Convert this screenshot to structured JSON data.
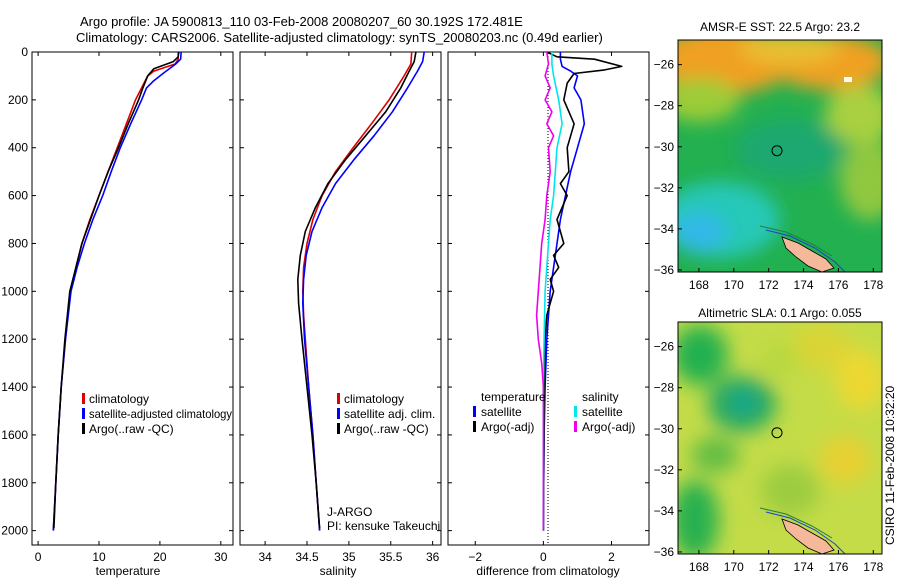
{
  "header": {
    "line1": "Argo profile: JA 5900813_110 03-Feb-2008 20080207_60 30.192S 172.481E",
    "line2": "Climatology: CARS2006. Satellite-adjusted climatology: synTS_20080203.nc (0.49d earlier)"
  },
  "side_label": "CSIRO 11-Feb-2008 10:32:20",
  "pi_info": {
    "line1": "J-ARGO",
    "line2": "PI: kensuke Takeuchi"
  },
  "colors": {
    "climatology": "#dd0000",
    "satellite": "#0000ff",
    "argo": "#000000",
    "sal_satellite": "#00e5ee",
    "sal_argo": "#ee00ee"
  },
  "chart_data": [
    {
      "type": "line",
      "xlabel": "temperature",
      "ylabel": "",
      "xlim": [
        -1,
        32
      ],
      "ylim": [
        2060,
        0
      ],
      "xticks": [
        0,
        10,
        20,
        30
      ],
      "yticks": [
        0,
        200,
        400,
        600,
        800,
        1000,
        1200,
        1400,
        1600,
        1800,
        2000
      ],
      "legend": [
        "climatology",
        "satellite-adjusted climatology",
        "Argo(..raw -QC)"
      ],
      "series": [
        {
          "name": "climatology",
          "color": "#dd0000",
          "points": [
            [
              23,
              0
            ],
            [
              23,
              30
            ],
            [
              22.5,
              50
            ],
            [
              19,
              80
            ],
            [
              18,
              100
            ],
            [
              17,
              150
            ],
            [
              16,
              200
            ],
            [
              14.5,
              300
            ],
            [
              13,
              400
            ],
            [
              11.5,
              500
            ],
            [
              10,
              600
            ],
            [
              8.5,
              700
            ],
            [
              7.2,
              800
            ],
            [
              6.2,
              900
            ],
            [
              5.3,
              1000
            ],
            [
              4.5,
              1200
            ],
            [
              3.8,
              1400
            ],
            [
              3.3,
              1600
            ],
            [
              2.9,
              1800
            ],
            [
              2.5,
              2000
            ]
          ]
        },
        {
          "name": "satellite-adjusted climatology",
          "color": "#0000ff",
          "points": [
            [
              23.5,
              0
            ],
            [
              23.4,
              30
            ],
            [
              22.6,
              50
            ],
            [
              20.5,
              90
            ],
            [
              19,
              120
            ],
            [
              17.8,
              150
            ],
            [
              17,
              200
            ],
            [
              15.2,
              300
            ],
            [
              13.5,
              400
            ],
            [
              12,
              500
            ],
            [
              10.6,
              600
            ],
            [
              9,
              700
            ],
            [
              7.6,
              800
            ],
            [
              6.4,
              900
            ],
            [
              5.4,
              1000
            ],
            [
              4.5,
              1200
            ],
            [
              3.8,
              1400
            ],
            [
              3.3,
              1600
            ],
            [
              2.9,
              1800
            ],
            [
              2.5,
              2000
            ]
          ]
        },
        {
          "name": "Argo(..raw -QC)",
          "color": "#000000",
          "points": [
            [
              23.1,
              0
            ],
            [
              23,
              20
            ],
            [
              22.2,
              40
            ],
            [
              19,
              70
            ],
            [
              18,
              100
            ],
            [
              17.2,
              150
            ],
            [
              16.5,
              200
            ],
            [
              14.8,
              300
            ],
            [
              13.2,
              400
            ],
            [
              11.5,
              500
            ],
            [
              10,
              600
            ],
            [
              8.6,
              700
            ],
            [
              7.2,
              800
            ],
            [
              6.2,
              900
            ],
            [
              5.2,
              1000
            ],
            [
              4.4,
              1200
            ],
            [
              3.8,
              1400
            ],
            [
              3.3,
              1600
            ],
            [
              2.9,
              1800
            ],
            [
              2.6,
              1990
            ]
          ]
        }
      ]
    },
    {
      "type": "line",
      "xlabel": "salinity",
      "ylabel": "",
      "xlim": [
        33.7,
        36.1
      ],
      "ylim": [
        2060,
        0
      ],
      "xticks": [
        34,
        34.5,
        35,
        35.5,
        36
      ],
      "yticks": [],
      "legend": [
        "climatology",
        "satellite adj. clim.",
        "Argo(..raw -QC)"
      ],
      "series": [
        {
          "name": "climatology",
          "color": "#dd0000",
          "points": [
            [
              35.75,
              0
            ],
            [
              35.74,
              50
            ],
            [
              35.66,
              100
            ],
            [
              35.48,
              200
            ],
            [
              35.27,
              300
            ],
            [
              35.05,
              400
            ],
            [
              34.84,
              500
            ],
            [
              34.68,
              600
            ],
            [
              34.57,
              700
            ],
            [
              34.5,
              800
            ],
            [
              34.46,
              900
            ],
            [
              34.45,
              1000
            ],
            [
              34.46,
              1100
            ],
            [
              34.48,
              1200
            ],
            [
              34.52,
              1400
            ],
            [
              34.57,
              1600
            ],
            [
              34.61,
              1800
            ],
            [
              34.65,
              2000
            ]
          ]
        },
        {
          "name": "satellite adj. clim.",
          "color": "#0000ff",
          "points": [
            [
              35.9,
              0
            ],
            [
              35.88,
              40
            ],
            [
              35.82,
              80
            ],
            [
              35.7,
              150
            ],
            [
              35.52,
              250
            ],
            [
              35.3,
              350
            ],
            [
              35.06,
              450
            ],
            [
              34.84,
              550
            ],
            [
              34.68,
              650
            ],
            [
              34.56,
              750
            ],
            [
              34.49,
              850
            ],
            [
              34.46,
              950
            ],
            [
              34.45,
              1050
            ],
            [
              34.47,
              1200
            ],
            [
              34.52,
              1400
            ],
            [
              34.57,
              1600
            ],
            [
              34.61,
              1800
            ],
            [
              34.65,
              2000
            ]
          ]
        },
        {
          "name": "Argo(..raw -QC)",
          "color": "#000000",
          "points": [
            [
              35.8,
              0
            ],
            [
              35.78,
              40
            ],
            [
              35.72,
              80
            ],
            [
              35.62,
              150
            ],
            [
              35.44,
              250
            ],
            [
              35.2,
              350
            ],
            [
              34.96,
              450
            ],
            [
              34.75,
              550
            ],
            [
              34.6,
              650
            ],
            [
              34.48,
              750
            ],
            [
              34.42,
              850
            ],
            [
              34.39,
              950
            ],
            [
              34.4,
              1050
            ],
            [
              34.44,
              1200
            ],
            [
              34.5,
              1400
            ],
            [
              34.56,
              1600
            ],
            [
              34.61,
              1800
            ],
            [
              34.65,
              1990
            ]
          ]
        }
      ]
    },
    {
      "type": "line",
      "xlabel": "difference from climatology",
      "ylabel": "",
      "xlim": [
        -2.8,
        3.1
      ],
      "ylim": [
        2060,
        0
      ],
      "xticks": [
        -2,
        0,
        2
      ],
      "yticks": [],
      "legend": [
        "temperature",
        "satellite",
        "Argo(-adj)",
        "salinity",
        "satellite",
        "Argo(-adj)"
      ],
      "series": [
        {
          "name": "temperature satellite",
          "color": "#0000ff",
          "points": [
            [
              0.5,
              0
            ],
            [
              0.5,
              30
            ],
            [
              0.55,
              60
            ],
            [
              0.8,
              80
            ],
            [
              1.0,
              100
            ],
            [
              0.9,
              150
            ],
            [
              1.1,
              200
            ],
            [
              1.2,
              300
            ],
            [
              1.0,
              400
            ],
            [
              0.8,
              500
            ],
            [
              0.65,
              600
            ],
            [
              0.5,
              700
            ],
            [
              0.4,
              800
            ],
            [
              0.3,
              900
            ],
            [
              0.2,
              1000
            ],
            [
              0.1,
              1200
            ],
            [
              0.05,
              1400
            ],
            [
              0.02,
              1600
            ],
            [
              0.01,
              1800
            ],
            [
              0,
              2000
            ]
          ]
        },
        {
          "name": "temperature Argo(-adj)",
          "color": "#000000",
          "points": [
            [
              0.1,
              0
            ],
            [
              0.4,
              20
            ],
            [
              1.5,
              30
            ],
            [
              2.3,
              60
            ],
            [
              1.8,
              75
            ],
            [
              0.9,
              90
            ],
            [
              0.7,
              130
            ],
            [
              0.6,
              200
            ],
            [
              0.9,
              300
            ],
            [
              0.7,
              400
            ],
            [
              0.75,
              500
            ],
            [
              0.5,
              550
            ],
            [
              0.7,
              600
            ],
            [
              0.4,
              700
            ],
            [
              0.6,
              800
            ],
            [
              0.3,
              850
            ],
            [
              0.45,
              900
            ],
            [
              0.2,
              950
            ],
            [
              0.3,
              1000
            ],
            [
              0.1,
              1100
            ],
            [
              0.05,
              1200
            ],
            [
              0.03,
              1400
            ],
            [
              0.02,
              1600
            ],
            [
              0.01,
              1800
            ],
            [
              0,
              2000
            ]
          ]
        },
        {
          "name": "salinity satellite",
          "color": "#00e5ee",
          "points": [
            [
              0.25,
              0
            ],
            [
              0.25,
              50
            ],
            [
              0.3,
              100
            ],
            [
              0.45,
              200
            ],
            [
              0.55,
              300
            ],
            [
              0.4,
              400
            ],
            [
              0.35,
              500
            ],
            [
              0.3,
              600
            ],
            [
              0.2,
              700
            ],
            [
              0.15,
              800
            ],
            [
              0.1,
              900
            ],
            [
              0.05,
              1000
            ],
            [
              0.02,
              1200
            ],
            [
              0,
              1400
            ],
            [
              0,
              1600
            ],
            [
              0,
              1800
            ],
            [
              0,
              2000
            ]
          ]
        },
        {
          "name": "salinity Argo(-adj)",
          "color": "#ee00ee",
          "points": [
            [
              0.1,
              0
            ],
            [
              0.15,
              50
            ],
            [
              0.05,
              100
            ],
            [
              0.2,
              150
            ],
            [
              0.05,
              200
            ],
            [
              0.25,
              250
            ],
            [
              0.1,
              300
            ],
            [
              0.3,
              350
            ],
            [
              0.15,
              400
            ],
            [
              0.2,
              500
            ],
            [
              0.1,
              600
            ],
            [
              0.05,
              700
            ],
            [
              -0.05,
              800
            ],
            [
              -0.1,
              900
            ],
            [
              -0.15,
              1000
            ],
            [
              -0.2,
              1100
            ],
            [
              -0.15,
              1200
            ],
            [
              -0.05,
              1300
            ],
            [
              0,
              1400
            ],
            [
              0,
              1600
            ],
            [
              0,
              1800
            ],
            [
              0,
              2000
            ]
          ]
        }
      ]
    },
    {
      "type": "heatmap",
      "title": "AMSR-E SST: 22.5 Argo: 23.2",
      "xlabel": "",
      "ylabel": "",
      "xlim": [
        166.8,
        178.5
      ],
      "ylim": [
        -36.1,
        -24.8
      ],
      "xticks": [
        168,
        170,
        172,
        174,
        176,
        178
      ],
      "yticks": [
        -26,
        -28,
        -30,
        -32,
        -34,
        -36
      ],
      "float_position": [
        172.48,
        -30.19
      ]
    },
    {
      "type": "heatmap",
      "title": "Altimetric SLA: 0.1 Argo: 0.055",
      "xlabel": "",
      "ylabel": "",
      "xlim": [
        166.8,
        178.5
      ],
      "ylim": [
        -36.1,
        -24.8
      ],
      "xticks": [
        168,
        170,
        172,
        174,
        176,
        178
      ],
      "yticks": [
        -26,
        -28,
        -30,
        -32,
        -34,
        -36
      ],
      "float_position": [
        172.48,
        -30.19
      ]
    }
  ]
}
